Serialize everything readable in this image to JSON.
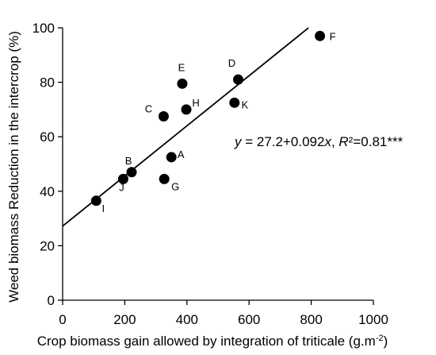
{
  "chart_data": {
    "type": "scatter",
    "xlabel": "Crop biomass gain allowed by integration of triticale (g.m",
    "xlabel_sup": "-2",
    "xlabel_end": ")",
    "ylabel": "Weed biomass Reduction in the intercrop (%)",
    "xlim": [
      0,
      1000
    ],
    "ylim": [
      0,
      100
    ],
    "xticks": [
      0,
      200,
      400,
      600,
      800,
      1000
    ],
    "yticks": [
      0,
      20,
      40,
      60,
      80,
      100
    ],
    "grid": false,
    "points": [
      {
        "label": "A",
        "x": 350,
        "y": 52.5
      },
      {
        "label": "B",
        "x": 222,
        "y": 47
      },
      {
        "label": "C",
        "x": 325,
        "y": 67.5
      },
      {
        "label": "D",
        "x": 565,
        "y": 81
      },
      {
        "label": "E",
        "x": 385,
        "y": 79.5
      },
      {
        "label": "F",
        "x": 828,
        "y": 97
      },
      {
        "label": "G",
        "x": 327,
        "y": 44.5
      },
      {
        "label": "H",
        "x": 398,
        "y": 70
      },
      {
        "label": "I",
        "x": 108,
        "y": 36.5
      },
      {
        "label": "J",
        "x": 195,
        "y": 44.5
      },
      {
        "label": "K",
        "x": 553,
        "y": 72.5
      }
    ],
    "regression": {
      "intercept": 27.2,
      "slope": 0.092,
      "x_range": [
        0,
        791
      ],
      "equation_y": "y",
      "equation_rhs": " = 27.2+0.092",
      "equation_x": "x",
      "equation_sep": ",  ",
      "equation_r": "R",
      "equation_r_rhs": "²=0.81***"
    }
  }
}
